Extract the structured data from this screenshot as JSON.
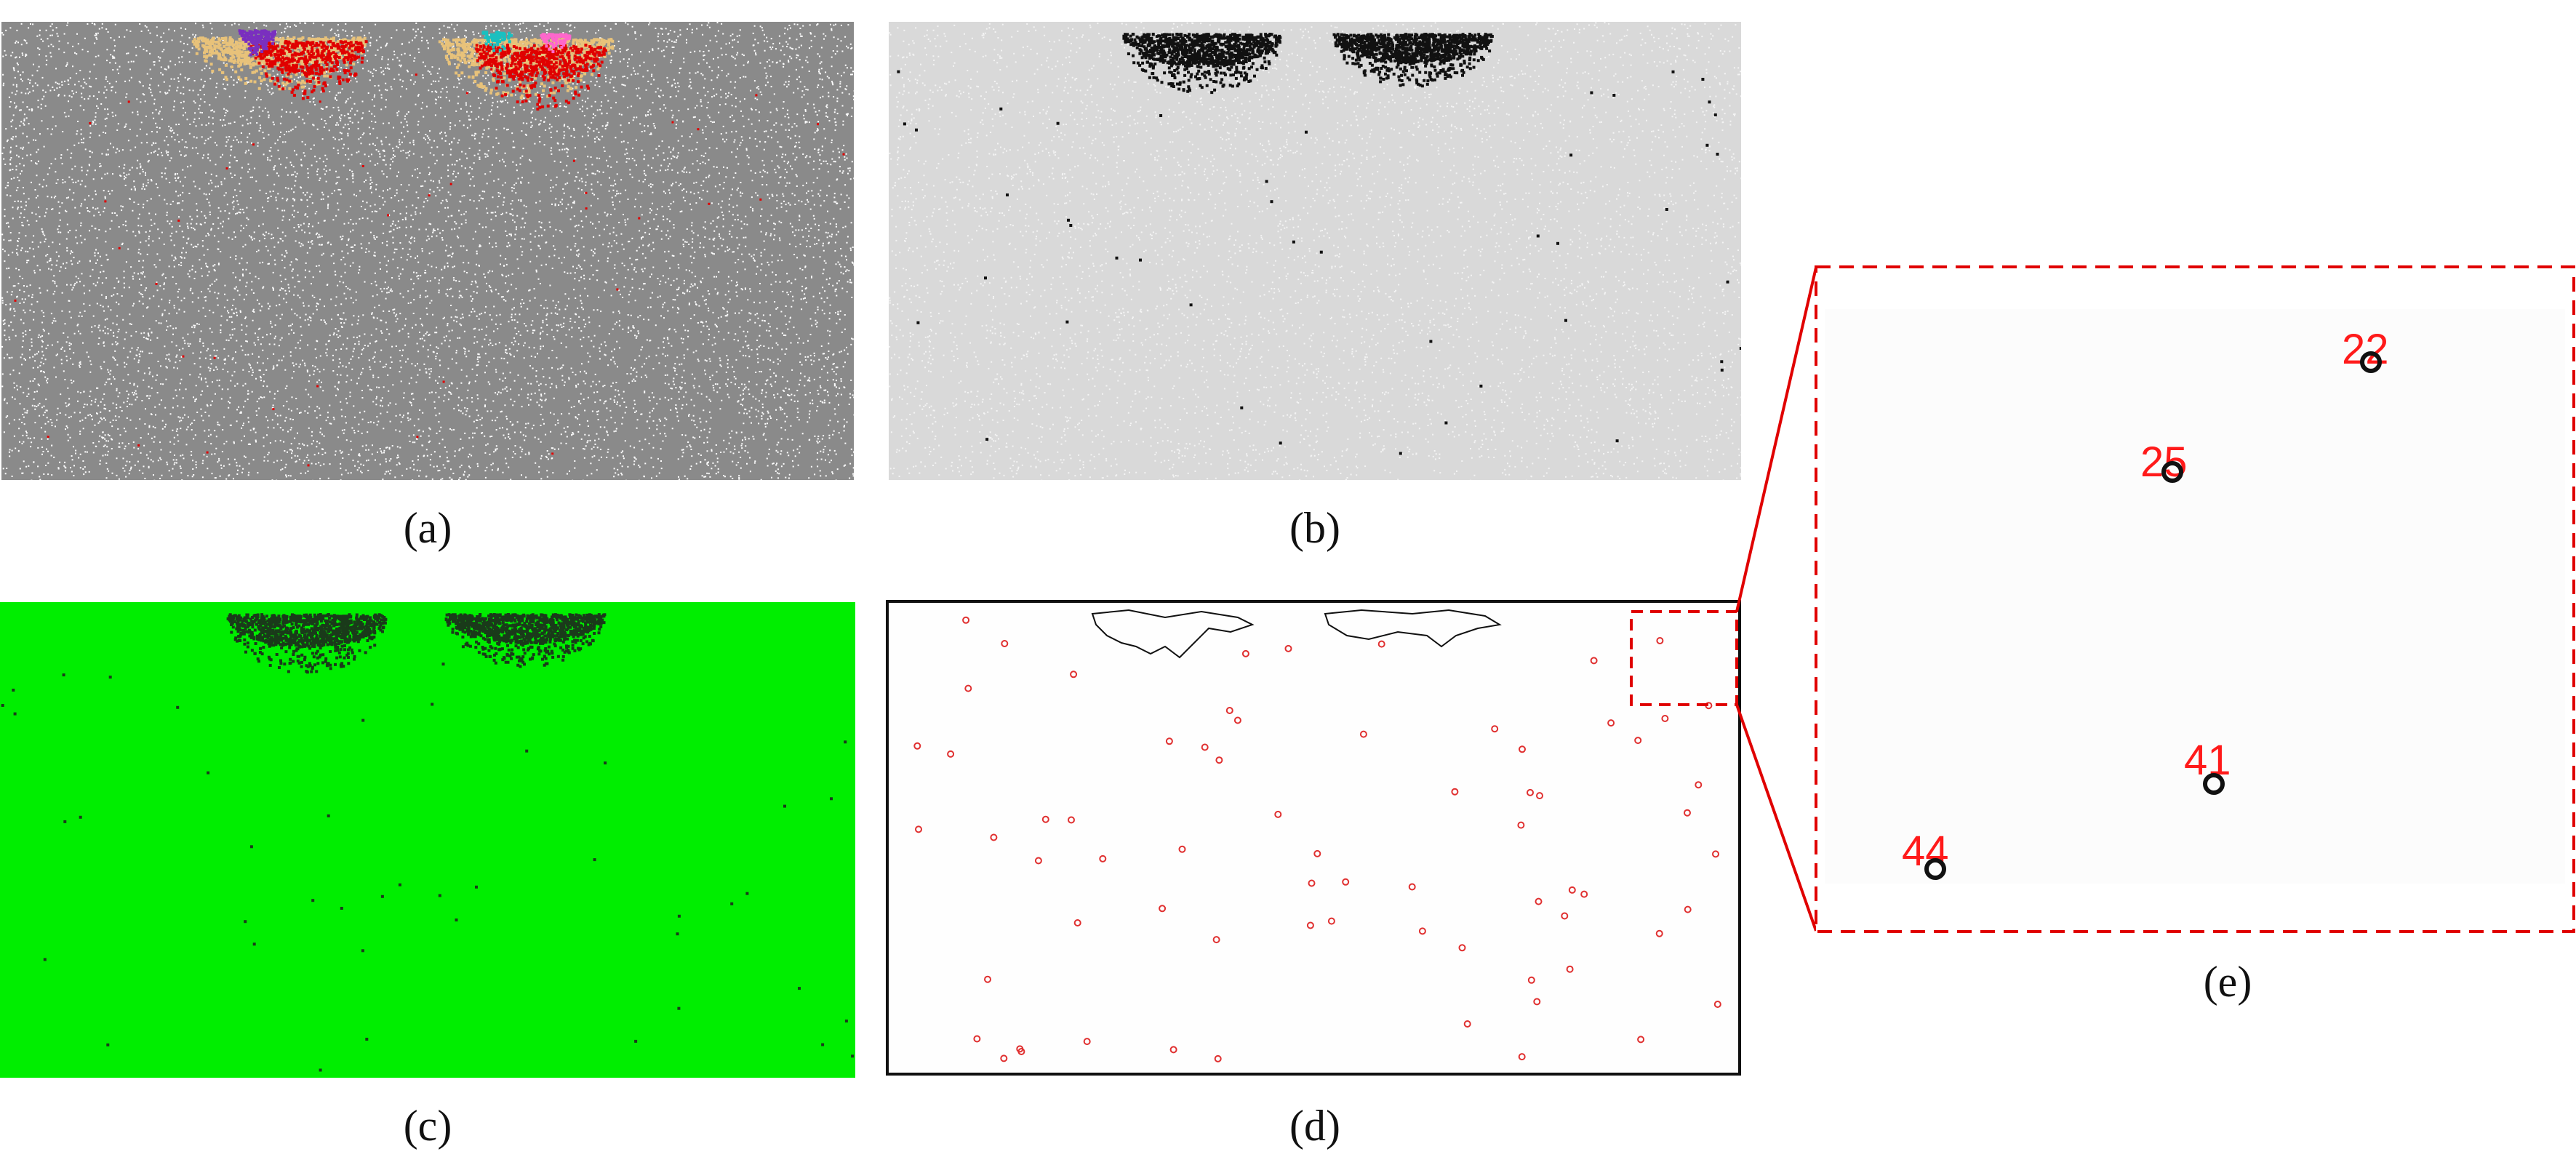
{
  "figure": {
    "panels": [
      {
        "id": "a",
        "caption": "(a)",
        "description_colors": {
          "background": "#8a8a8a",
          "grain": "#ffffff",
          "damage": [
            "#e00000",
            "#7a2fbf",
            "#f0a000",
            "#19c0c0",
            "#ff66cc",
            "#e8c27a"
          ]
        }
      },
      {
        "id": "b",
        "caption": "(b)",
        "description_colors": {
          "background": "#d9d9d9",
          "cluster": "#111111"
        }
      },
      {
        "id": "c",
        "caption": "(c)",
        "description_colors": {
          "background": "#00ee00",
          "cluster": "#1a3a1a"
        }
      },
      {
        "id": "d",
        "caption": "(d)",
        "description_colors": {
          "background": "#fefefe",
          "outline": "#111111",
          "marker": "#e03030"
        }
      },
      {
        "id": "e",
        "caption": "(e)",
        "description_colors": {
          "frame": "#e00000",
          "label": "#ff1a1a",
          "ring": "#111111"
        }
      }
    ],
    "zoom_labels": [
      "22",
      "25",
      "41",
      "44"
    ]
  }
}
